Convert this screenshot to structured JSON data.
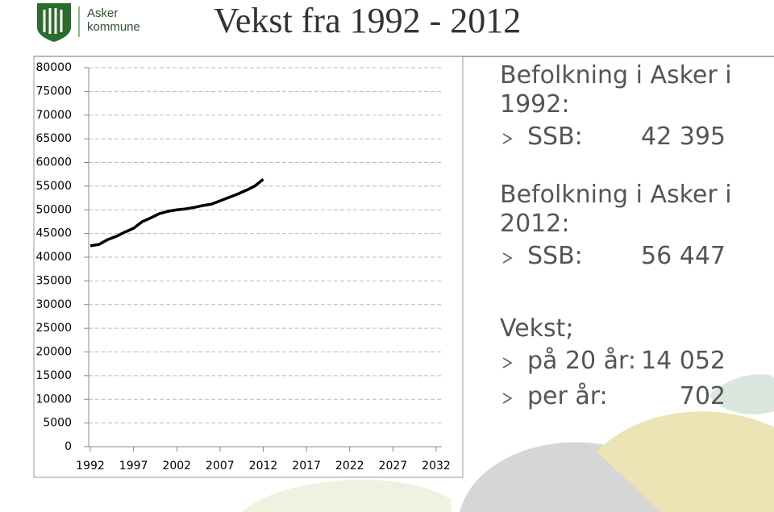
{
  "header": {
    "logo_name": "Asker",
    "logo_sub": "kommune",
    "title": "Vekst fra 1992 - 2012"
  },
  "chart_data": {
    "type": "line",
    "x": [
      1992,
      1993,
      1994,
      1995,
      1996,
      1997,
      1998,
      1999,
      2000,
      2001,
      2002,
      2003,
      2004,
      2005,
      2006,
      2007,
      2008,
      2009,
      2010,
      2011,
      2012
    ],
    "series": [
      {
        "name": "Befolkning",
        "color": "#000000",
        "values": [
          42395,
          42700,
          43700,
          44400,
          45300,
          46100,
          47500,
          48300,
          49200,
          49700,
          50000,
          50200,
          50500,
          50900,
          51200,
          51900,
          52600,
          53300,
          54100,
          55000,
          56447
        ]
      }
    ],
    "xlim": [
      1992,
      2032
    ],
    "xticks": [
      1992,
      1997,
      2002,
      2007,
      2012,
      2017,
      2022,
      2027,
      2032
    ],
    "ylim": [
      0,
      80000
    ],
    "yticks": [
      0,
      5000,
      10000,
      15000,
      20000,
      25000,
      30000,
      35000,
      40000,
      45000,
      50000,
      55000,
      60000,
      65000,
      70000,
      75000,
      80000
    ],
    "grid": true
  },
  "info": [
    {
      "heading": "Befolkning i Asker i 1992:",
      "items": [
        {
          "label": "SSB:",
          "value": "42 395"
        }
      ]
    },
    {
      "heading": "Befolkning i Asker i 2012:",
      "items": [
        {
          "label": "SSB:",
          "value": "56 447"
        }
      ]
    },
    {
      "heading": "Vekst;",
      "items": [
        {
          "label": "på 20 år:",
          "value": "14 052"
        },
        {
          "label": "per år:",
          "value": "702"
        }
      ]
    }
  ]
}
